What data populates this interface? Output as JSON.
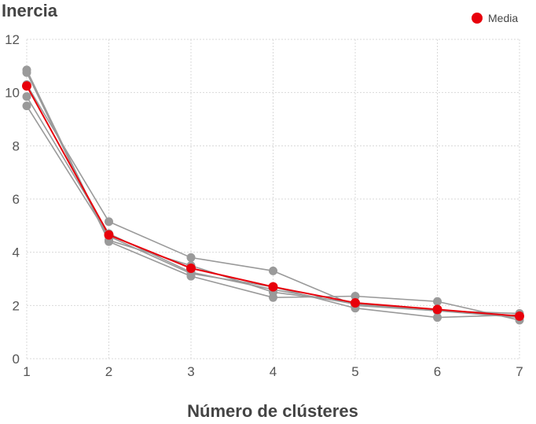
{
  "chart_data": {
    "type": "line",
    "title": "Inercia",
    "xlabel": "Número de clústeres",
    "ylabel": "",
    "x": [
      1,
      2,
      3,
      4,
      5,
      6,
      7
    ],
    "xlim": [
      1,
      7
    ],
    "ylim": [
      0,
      12
    ],
    "xticks": [
      "1",
      "2",
      "3",
      "4",
      "5",
      "6",
      "7"
    ],
    "yticks": [
      "0",
      "2",
      "4",
      "6",
      "8",
      "10",
      "12"
    ],
    "grid": true,
    "legend_position": "top-right",
    "legend": [
      {
        "label": "Media",
        "color": "#e8000b"
      }
    ],
    "series": [
      {
        "values": [
          10.85,
          4.45,
          3.5,
          2.5,
          2.1,
          1.8,
          1.6
        ],
        "color": "#9a9a9a"
      },
      {
        "values": [
          10.75,
          4.4,
          3.1,
          2.3,
          2.35,
          2.15,
          1.45
        ],
        "color": "#9a9a9a"
      },
      {
        "values": [
          10.3,
          5.15,
          3.8,
          3.3,
          2.0,
          1.8,
          1.55
        ],
        "color": "#9a9a9a"
      },
      {
        "values": [
          9.85,
          4.7,
          3.25,
          2.6,
          2.05,
          1.8,
          1.7
        ],
        "color": "#9a9a9a"
      },
      {
        "values": [
          9.5,
          4.6,
          3.2,
          2.7,
          1.9,
          1.55,
          1.65
        ],
        "color": "#9a9a9a"
      },
      {
        "name": "Media",
        "values": [
          10.25,
          4.65,
          3.4,
          2.7,
          2.1,
          1.85,
          1.6
        ],
        "color": "#e8000b"
      }
    ]
  }
}
